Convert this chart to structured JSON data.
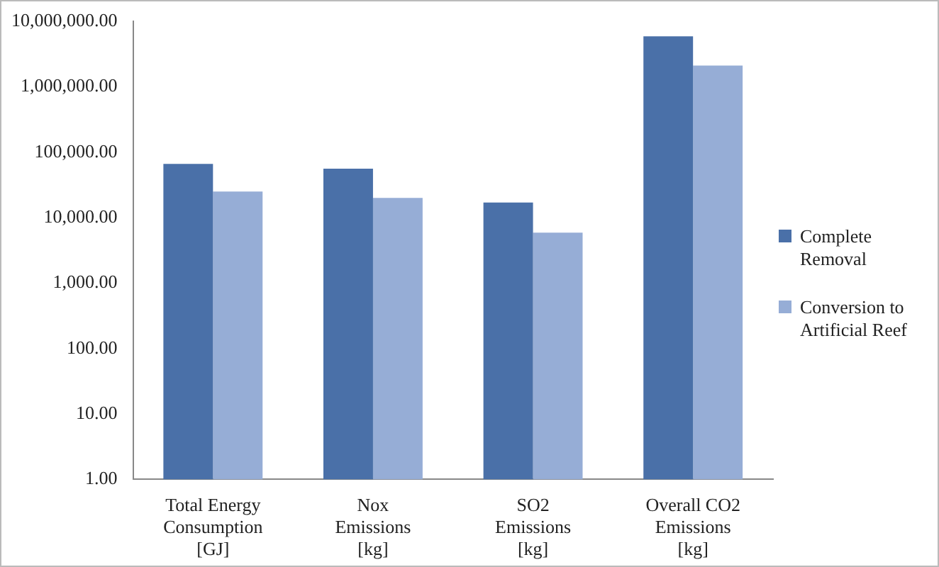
{
  "chart_data": {
    "type": "bar",
    "categories": [
      "Total Energy Consumption [GJ]",
      "Nox Emissions [kg]",
      "SO2 Emissions [kg]",
      "Overall CO2 Emissions [kg]"
    ],
    "series": [
      {
        "name": "Complete Removal",
        "color": "#4a70a8",
        "values": [
          66000,
          56000,
          17000,
          5900000
        ]
      },
      {
        "name": "Conversion to Artificial Reef",
        "color": "#96add6",
        "values": [
          25000,
          20000,
          5900,
          2100000
        ]
      }
    ],
    "log": "y",
    "ylim": [
      1,
      10000000
    ],
    "yticks": [
      {
        "value": 1,
        "label": "1.00"
      },
      {
        "value": 10,
        "label": "10.00"
      },
      {
        "value": 100,
        "label": "100.00"
      },
      {
        "value": 1000,
        "label": "1,000.00"
      },
      {
        "value": 10000,
        "label": "10,000.00"
      },
      {
        "value": 100000,
        "label": "100,000.00"
      },
      {
        "value": 1000000,
        "label": "1,000,000.00"
      },
      {
        "value": 10000000,
        "label": "10,000,000.00"
      }
    ],
    "grid": false,
    "legend": "right"
  }
}
